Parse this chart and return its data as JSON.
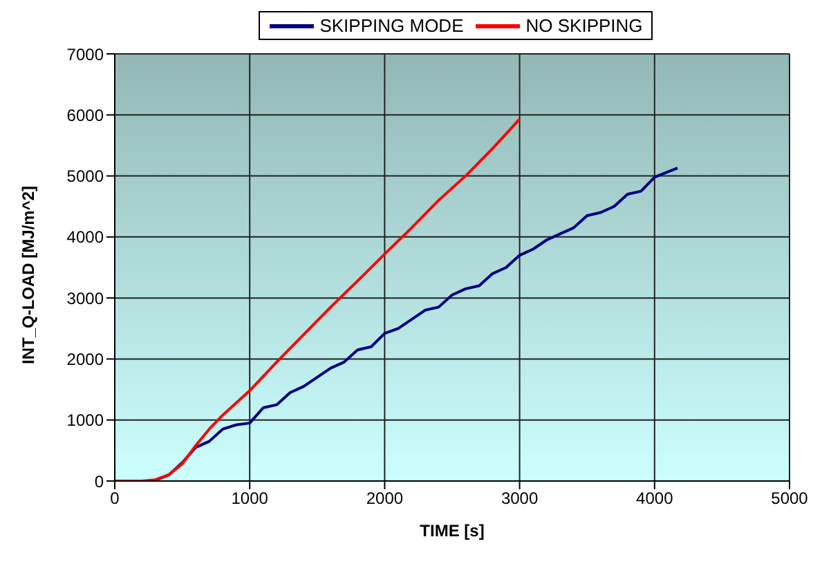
{
  "chart_data": {
    "type": "line",
    "xlabel": "TIME [s]",
    "ylabel": "INT_Q-LOAD [MJ/m^2]",
    "xlim": [
      0,
      5000
    ],
    "xticks": [
      0,
      1000,
      2000,
      3000,
      4000,
      5000
    ],
    "ylim": [
      0,
      7000
    ],
    "yticks": [
      0,
      1000,
      2000,
      3000,
      4000,
      5000,
      6000,
      7000
    ],
    "grid": true,
    "legend": "top",
    "marker": "none",
    "line_style": "solid",
    "series": [
      {
        "name": "SKIPPING MODE",
        "color": "#000080",
        "x": [
          300,
          400,
          500,
          600,
          700,
          800,
          900,
          1000,
          1100,
          1200,
          1300,
          1400,
          1500,
          1600,
          1700,
          1800,
          1900,
          2000,
          2100,
          2200,
          2300,
          2400,
          2500,
          2600,
          2700,
          2800,
          2900,
          3000,
          3100,
          3200,
          3300,
          3400,
          3500,
          3600,
          3700,
          3800,
          3900,
          4000,
          4170
        ],
        "values": [
          10,
          100,
          300,
          550,
          650,
          850,
          920,
          950,
          1200,
          1250,
          1450,
          1550,
          1700,
          1850,
          1950,
          2150,
          2200,
          2420,
          2500,
          2650,
          2800,
          2850,
          3050,
          3150,
          3200,
          3400,
          3500,
          3700,
          3800,
          3950,
          4050,
          4150,
          4350,
          4400,
          4500,
          4700,
          4750,
          4980,
          5130
        ]
      },
      {
        "name": "NO SKIPPING",
        "color": "#ff0000",
        "x": [
          0,
          200,
          300,
          400,
          500,
          600,
          700,
          800,
          900,
          1000,
          1200,
          1400,
          1600,
          1800,
          2000,
          2200,
          2400,
          2600,
          2800,
          3000
        ],
        "values": [
          0,
          0,
          20,
          100,
          280,
          580,
          850,
          1080,
          1280,
          1480,
          1950,
          2400,
          2850,
          3280,
          3720,
          4150,
          4600,
          5000,
          5450,
          5930
        ]
      }
    ]
  }
}
